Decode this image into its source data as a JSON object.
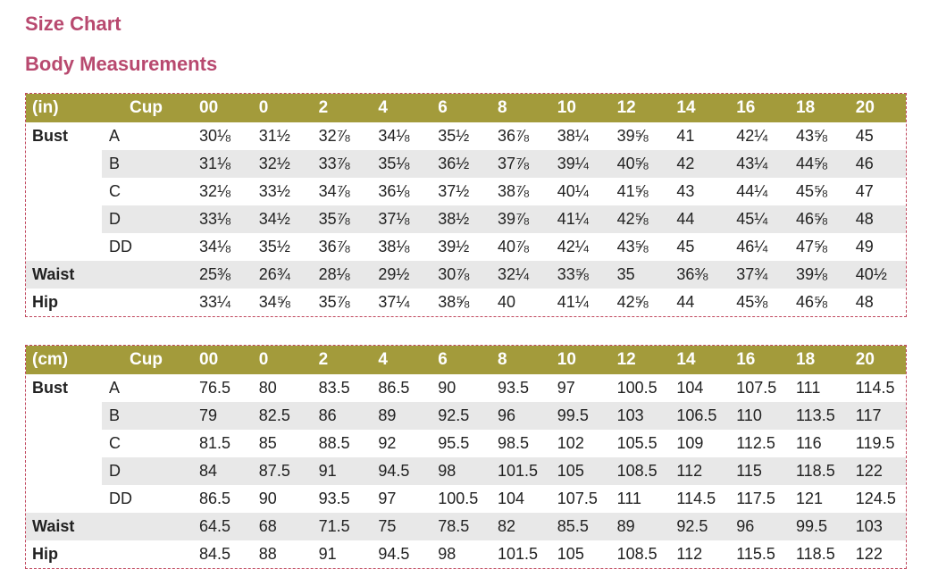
{
  "header": {
    "title": "Size Chart",
    "subtitle": "Body Measurements"
  },
  "tables": [
    {
      "header": [
        "(in)",
        "Cup",
        "00",
        "0",
        "2",
        "4",
        "6",
        "8",
        "10",
        "12",
        "14",
        "16",
        "18",
        "20"
      ],
      "rows": [
        {
          "label": "Bust",
          "cup": "A",
          "values": [
            "30⅛",
            "31½",
            "32⅞",
            "34⅛",
            "35½",
            "36⅞",
            "38¼",
            "39⅝",
            "41",
            "42¼",
            "43⅝",
            "45"
          ]
        },
        {
          "cup": "B",
          "values": [
            "31⅛",
            "32½",
            "33⅞",
            "35⅛",
            "36½",
            "37⅞",
            "39¼",
            "40⅝",
            "42",
            "43¼",
            "44⅝",
            "46"
          ]
        },
        {
          "cup": "C",
          "values": [
            "32⅛",
            "33½",
            "34⅞",
            "36⅛",
            "37½",
            "38⅞",
            "40¼",
            "41⅝",
            "43",
            "44¼",
            "45⅝",
            "47"
          ]
        },
        {
          "cup": "D",
          "values": [
            "33⅛",
            "34½",
            "35⅞",
            "37⅛",
            "38½",
            "39⅞",
            "41¼",
            "42⅝",
            "44",
            "45¼",
            "46⅝",
            "48"
          ]
        },
        {
          "cup": "DD",
          "values": [
            "34⅛",
            "35½",
            "36⅞",
            "38⅛",
            "39½",
            "40⅞",
            "42¼",
            "43⅝",
            "45",
            "46¼",
            "47⅝",
            "49"
          ]
        },
        {
          "label": "Waist",
          "values": [
            "25⅜",
            "26¾",
            "28⅛",
            "29½",
            "30⅞",
            "32¼",
            "33⅝",
            "35",
            "36⅜",
            "37¾",
            "39⅛",
            "40½"
          ]
        },
        {
          "label": "Hip",
          "values": [
            "33¼",
            "34⅝",
            "35⅞",
            "37¼",
            "38⅝",
            "40",
            "41¼",
            "42⅝",
            "44",
            "45⅜",
            "46⅝",
            "48"
          ]
        }
      ]
    },
    {
      "header": [
        "(cm)",
        "Cup",
        "00",
        "0",
        "2",
        "4",
        "6",
        "8",
        "10",
        "12",
        "14",
        "16",
        "18",
        "20"
      ],
      "rows": [
        {
          "label": "Bust",
          "cup": "A",
          "values": [
            76.5,
            80,
            83.5,
            86.5,
            90,
            93.5,
            97,
            100.5,
            104,
            107.5,
            111,
            114.5
          ]
        },
        {
          "cup": "B",
          "values": [
            79,
            82.5,
            86,
            89,
            92.5,
            96,
            99.5,
            103,
            106.5,
            110,
            113.5,
            117
          ]
        },
        {
          "cup": "C",
          "values": [
            81.5,
            85,
            88.5,
            92,
            95.5,
            98.5,
            102,
            105.5,
            109,
            112.5,
            116,
            119.5
          ]
        },
        {
          "cup": "D",
          "values": [
            84,
            87.5,
            91,
            94.5,
            98,
            101.5,
            105,
            108.5,
            112,
            115,
            118.5,
            122
          ]
        },
        {
          "cup": "DD",
          "values": [
            86.5,
            90,
            93.5,
            97,
            100.5,
            104,
            107.5,
            111,
            114.5,
            117.5,
            121,
            124.5
          ]
        },
        {
          "label": "Waist",
          "values": [
            64.5,
            68,
            71.5,
            75,
            78.5,
            82,
            85.5,
            89,
            92.5,
            96,
            99.5,
            103
          ]
        },
        {
          "label": "Hip",
          "values": [
            84.5,
            88,
            91,
            94.5,
            98,
            101.5,
            105,
            108.5,
            112,
            115.5,
            118.5,
            122
          ]
        }
      ]
    }
  ]
}
